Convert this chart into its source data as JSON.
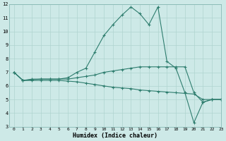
{
  "x": [
    0,
    1,
    2,
    3,
    4,
    5,
    6,
    7,
    8,
    9,
    10,
    11,
    12,
    13,
    14,
    15,
    16,
    17,
    18,
    19,
    20,
    21,
    22,
    23
  ],
  "line1": [
    7.0,
    6.4,
    6.4,
    6.4,
    6.4,
    6.4,
    6.35,
    6.3,
    6.2,
    6.1,
    6.0,
    5.9,
    5.85,
    5.8,
    5.7,
    5.65,
    5.6,
    5.55,
    5.5,
    5.45,
    5.4,
    5.0,
    5.0,
    5.0
  ],
  "line2": [
    7.0,
    6.4,
    6.45,
    6.5,
    6.5,
    6.5,
    6.5,
    6.6,
    6.7,
    6.8,
    7.0,
    7.1,
    7.2,
    7.3,
    7.4,
    7.4,
    7.4,
    7.4,
    7.4,
    7.4,
    5.5,
    4.8,
    5.0,
    5.0
  ],
  "line3": [
    7.0,
    6.4,
    6.5,
    6.5,
    6.5,
    6.5,
    6.6,
    7.0,
    7.3,
    8.5,
    9.7,
    10.5,
    11.2,
    11.8,
    11.3,
    10.5,
    11.8,
    7.8,
    7.3,
    5.5,
    3.3,
    4.8,
    5.0,
    5.0
  ],
  "bg_color": "#cde9e7",
  "line_color": "#2e7d6e",
  "grid_color": "#afd4d0",
  "xlabel": "Humidex (Indice chaleur)",
  "ylim": [
    3,
    12
  ],
  "xlim": [
    -0.5,
    23
  ],
  "yticks": [
    3,
    4,
    5,
    6,
    7,
    8,
    9,
    10,
    11,
    12
  ],
  "xticks": [
    0,
    1,
    2,
    3,
    4,
    5,
    6,
    7,
    8,
    9,
    10,
    11,
    12,
    13,
    14,
    15,
    16,
    17,
    18,
    19,
    20,
    21,
    22,
    23
  ]
}
